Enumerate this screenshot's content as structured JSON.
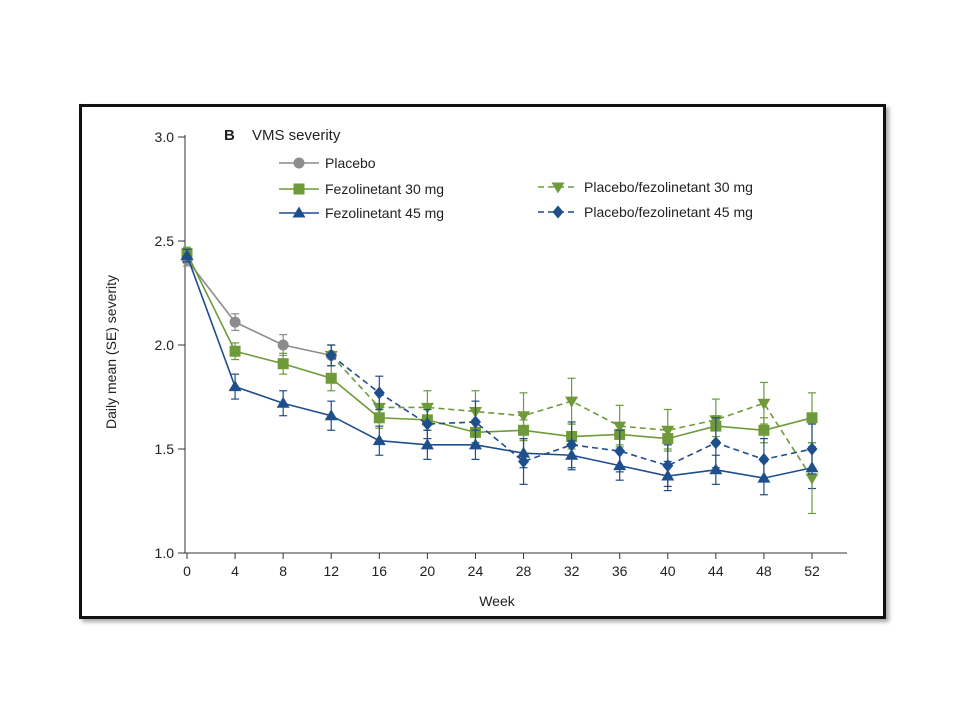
{
  "chart_data": {
    "type": "line",
    "panel_letter": "B",
    "title": "VMS severity",
    "xlabel": "Week",
    "ylabel": "Daily mean (SE) severity",
    "xlim": [
      0,
      52
    ],
    "ylim": [
      1.0,
      3.0
    ],
    "x_ticks": [
      0,
      4,
      8,
      12,
      16,
      20,
      24,
      28,
      32,
      36,
      40,
      44,
      48,
      52
    ],
    "y_ticks": [
      1.0,
      1.5,
      2.0,
      2.5,
      3.0
    ],
    "y_tick_labels": [
      "1.0",
      "1.5",
      "2.0",
      "2.5",
      "3.0"
    ],
    "grid": false,
    "legend_position": "top",
    "series": [
      {
        "name": "Placebo",
        "color": "#8c8c8c",
        "marker": "circle",
        "dashed": false,
        "x": [
          0,
          4,
          8,
          12
        ],
        "y": [
          2.41,
          2.11,
          2.0,
          1.95
        ],
        "se": [
          0.03,
          0.04,
          0.05,
          0.05
        ]
      },
      {
        "name": "Fezolinetant 30 mg",
        "color": "#6f9a3a",
        "marker": "square",
        "dashed": false,
        "x": [
          0,
          4,
          8,
          12,
          16,
          20,
          24,
          28,
          32,
          36,
          40,
          44,
          48,
          52
        ],
        "y": [
          2.44,
          1.97,
          1.91,
          1.84,
          1.65,
          1.64,
          1.58,
          1.59,
          1.56,
          1.57,
          1.55,
          1.61,
          1.59,
          1.65
        ],
        "se": [
          0.03,
          0.04,
          0.05,
          0.06,
          0.05,
          0.05,
          0.06,
          0.05,
          0.06,
          0.05,
          0.05,
          0.05,
          0.06,
          0.12
        ]
      },
      {
        "name": "Fezolinetant 45 mg",
        "color": "#1f4e8c",
        "marker": "triangle-up",
        "dashed": false,
        "x": [
          0,
          4,
          8,
          12,
          16,
          20,
          24,
          28,
          32,
          36,
          40,
          44,
          48,
          52
        ],
        "y": [
          2.43,
          1.8,
          1.72,
          1.66,
          1.54,
          1.52,
          1.52,
          1.48,
          1.47,
          1.42,
          1.37,
          1.4,
          1.36,
          1.41
        ],
        "se": [
          0.03,
          0.06,
          0.06,
          0.07,
          0.07,
          0.07,
          0.07,
          0.07,
          0.07,
          0.07,
          0.07,
          0.07,
          0.08,
          0.1
        ]
      },
      {
        "name": "Placebo/fezolinetant 30 mg",
        "color": "#6f9a3a",
        "marker": "triangle-down",
        "dashed": true,
        "x": [
          12,
          16,
          20,
          24,
          28,
          32,
          36,
          40,
          44,
          48,
          52
        ],
        "y": [
          1.95,
          1.7,
          1.7,
          1.68,
          1.66,
          1.73,
          1.61,
          1.59,
          1.64,
          1.72,
          1.36
        ],
        "se": [
          0.05,
          0.07,
          0.08,
          0.1,
          0.11,
          0.11,
          0.1,
          0.1,
          0.1,
          0.1,
          0.17
        ]
      },
      {
        "name": "Placebo/fezolinetant 45 mg",
        "color": "#1f4e8c",
        "marker": "diamond",
        "dashed": true,
        "x": [
          12,
          16,
          20,
          24,
          28,
          32,
          36,
          40,
          44,
          48,
          52
        ],
        "y": [
          1.95,
          1.77,
          1.62,
          1.63,
          1.44,
          1.52,
          1.49,
          1.42,
          1.53,
          1.45,
          1.5
        ],
        "se": [
          0.05,
          0.08,
          0.07,
          0.1,
          0.11,
          0.11,
          0.1,
          0.1,
          0.12,
          0.1,
          0.12
        ]
      }
    ]
  }
}
